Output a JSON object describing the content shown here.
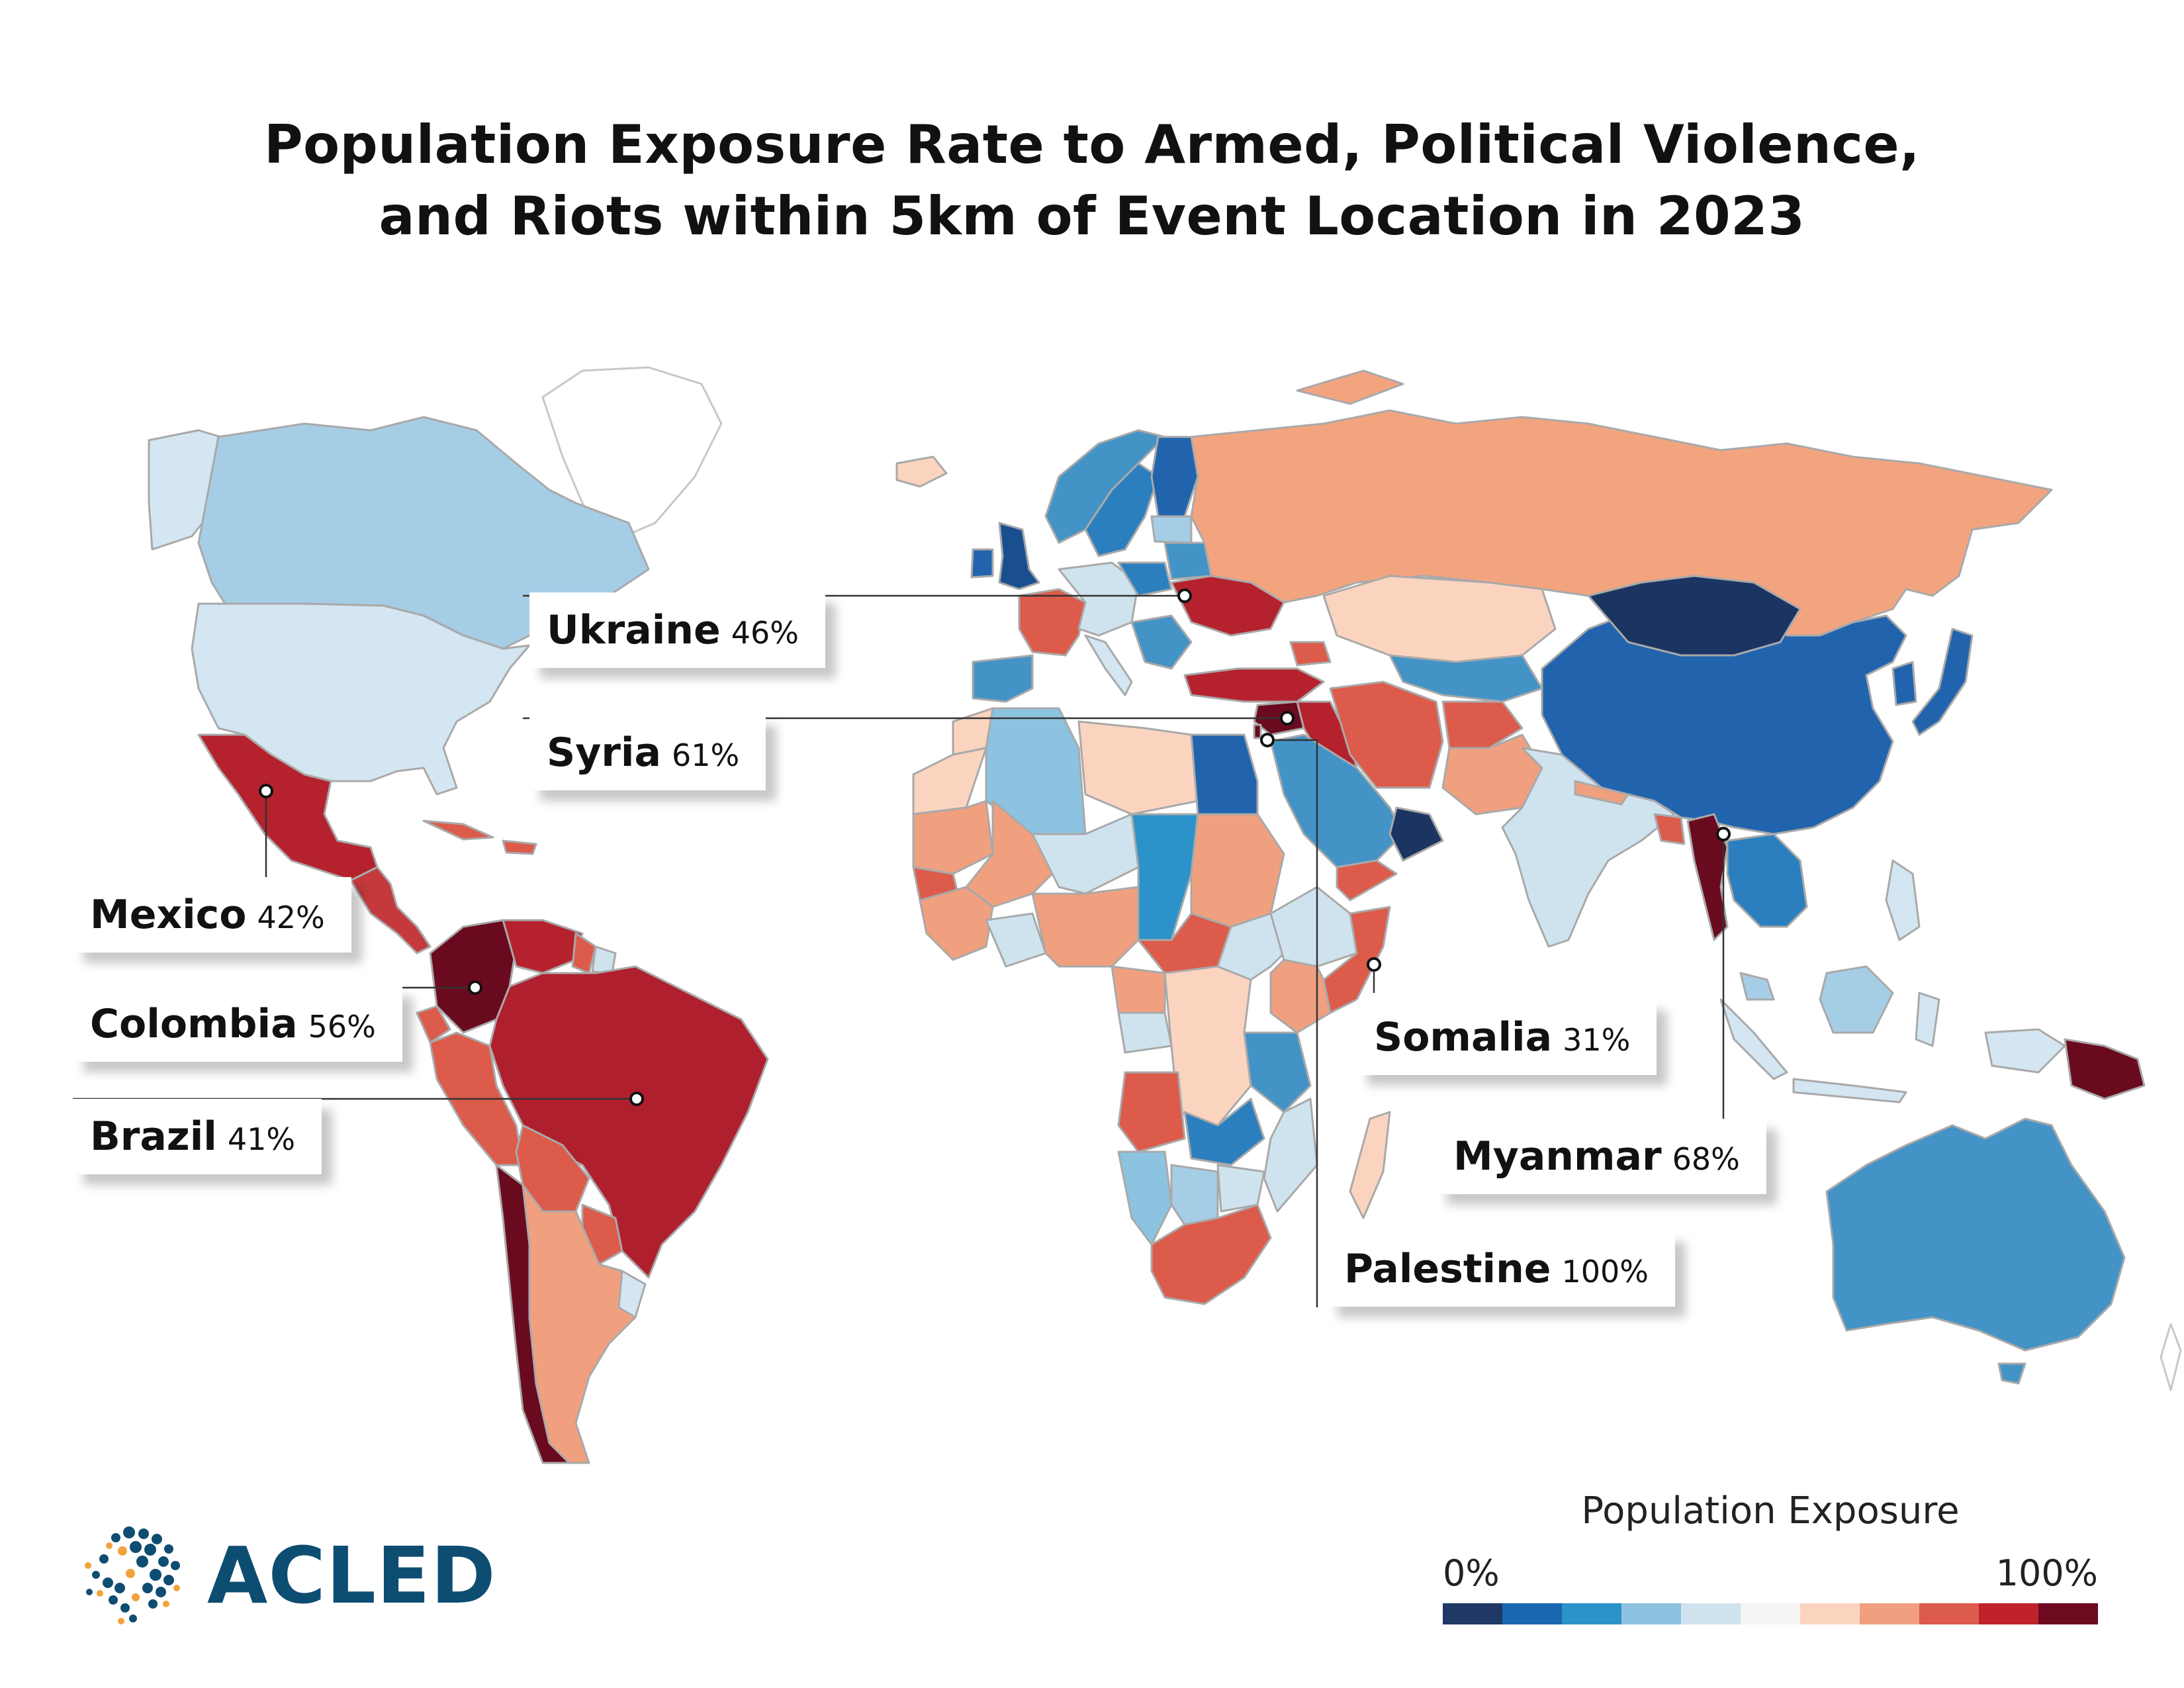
{
  "title": {
    "line1": "Population Exposure Rate to Armed, Political Violence,",
    "line2": "and Riots within 5km of Event Location in 2023"
  },
  "callouts": [
    {
      "id": "ukraine",
      "name": "Ukraine",
      "value": "46%"
    },
    {
      "id": "syria",
      "name": "Syria",
      "value": "61%"
    },
    {
      "id": "mexico",
      "name": "Mexico",
      "value": "42%"
    },
    {
      "id": "colombia",
      "name": "Colombia",
      "value": "56%"
    },
    {
      "id": "brazil",
      "name": "Brazil",
      "value": "41%"
    },
    {
      "id": "somalia",
      "name": "Somalia",
      "value": "31%"
    },
    {
      "id": "myanmar",
      "name": "Myanmar",
      "value": "68%"
    },
    {
      "id": "palestine",
      "name": "Palestine",
      "value": "100%"
    }
  ],
  "legend": {
    "title": "Population Exposure",
    "min_label": "0%",
    "max_label": "100%",
    "colors": [
      "#1f3864",
      "#1a66b0",
      "#2b93c9",
      "#8cc3e0",
      "#cfe3ef",
      "#f5f5f5",
      "#fbd4c0",
      "#f0a07f",
      "#dc5b4b",
      "#c0222c",
      "#6e0a20"
    ]
  },
  "colors": {
    "russia": "#f2a47f",
    "canada": "#a6cde6",
    "usa": "#d3e6f1",
    "mexico": "#b5222e",
    "brazil": "#b01f2d",
    "colombia": "#6a0a1f",
    "china": "#2164ad",
    "mongolia": "#1b3462",
    "australia": "#4393c7",
    "india": "#cfe3ef",
    "myanmar": "#6a0a1f",
    "palestine": "#6a0a1f"
  },
  "logo": {
    "text": "ACLED"
  }
}
